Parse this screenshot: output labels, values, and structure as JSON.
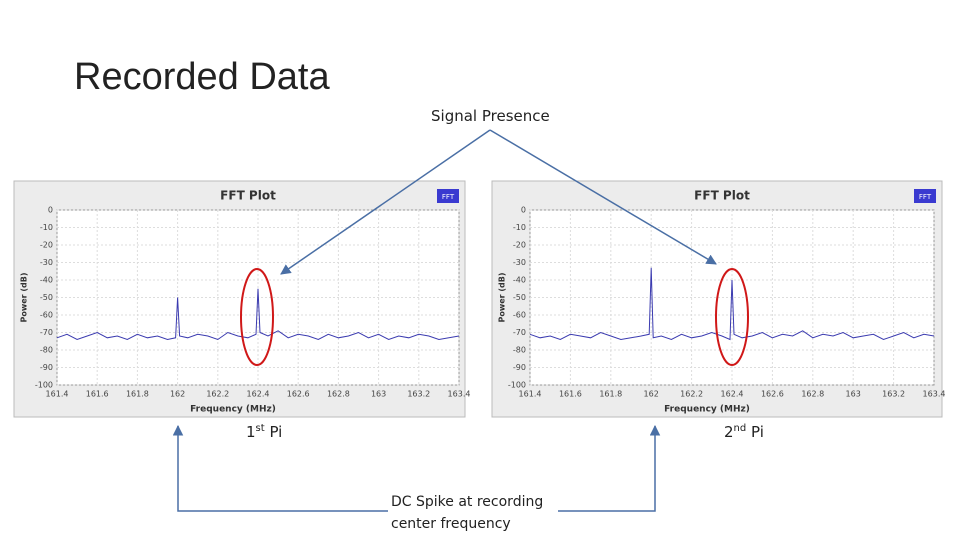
{
  "title": "Recorded Data",
  "annotations": {
    "signal": "Signal Presence",
    "pi1": {
      "number": "1",
      "sup": "st",
      "name": "Pi"
    },
    "pi2": {
      "number": "2",
      "sup": "nd",
      "name": "Pi"
    },
    "dc": [
      "DC Spike at recording",
      "center frequency"
    ]
  },
  "chart_data": [
    {
      "type": "line",
      "title": "FFT Plot",
      "badge": "FFT",
      "x_label": "Frequency (MHz)",
      "y_label": "Power (dB)",
      "grid": true,
      "xlim": [
        161.4,
        163.4
      ],
      "xticks": [
        161.4,
        161.6,
        161.8,
        162,
        162.2,
        162.4,
        162.6,
        162.8,
        163,
        163.2,
        163.4
      ],
      "ylim": [
        -100,
        0
      ],
      "yticks": [
        0,
        -10,
        -20,
        -30,
        -40,
        -50,
        -60,
        -70,
        -80,
        -90,
        -100
      ],
      "x": [
        161.4,
        161.45,
        161.5,
        161.55,
        161.6,
        161.65,
        161.7,
        161.75,
        161.8,
        161.85,
        161.9,
        161.95,
        161.99,
        162,
        162.01,
        162.05,
        162.1,
        162.15,
        162.2,
        162.25,
        162.3,
        162.35,
        162.39,
        162.4,
        162.41,
        162.45,
        162.5,
        162.55,
        162.6,
        162.65,
        162.7,
        162.75,
        162.8,
        162.85,
        162.9,
        162.95,
        163,
        163.05,
        163.1,
        163.15,
        163.2,
        163.25,
        163.3,
        163.35,
        163.4
      ],
      "series": [
        {
          "color": "#3b3bb0",
          "values": [
            -73,
            -71,
            -74,
            -72,
            -70,
            -73,
            -72,
            -74,
            -71,
            -73,
            -72,
            -74,
            -73,
            -50,
            -72,
            -73,
            -71,
            -72,
            -74,
            -70,
            -72,
            -73,
            -71,
            -45,
            -70,
            -72,
            -69,
            -73,
            -71,
            -72,
            -74,
            -71,
            -73,
            -72,
            -70,
            -73,
            -71,
            -74,
            -72,
            -73,
            -71,
            -72,
            -74,
            -73,
            -72
          ]
        }
      ]
    },
    {
      "type": "line",
      "title": "FFT Plot",
      "badge": "FFT",
      "x_label": "Frequency (MHz)",
      "y_label": "Power (dB)",
      "grid": true,
      "xlim": [
        161.4,
        163.4
      ],
      "xticks": [
        161.4,
        161.6,
        161.8,
        162,
        162.2,
        162.4,
        162.6,
        162.8,
        163,
        163.2,
        163.4
      ],
      "ylim": [
        -100,
        0
      ],
      "yticks": [
        0,
        -10,
        -20,
        -30,
        -40,
        -50,
        -60,
        -70,
        -80,
        -90,
        -100
      ],
      "x": [
        161.4,
        161.45,
        161.5,
        161.55,
        161.6,
        161.65,
        161.7,
        161.75,
        161.8,
        161.85,
        161.9,
        161.95,
        161.99,
        162,
        162.01,
        162.05,
        162.1,
        162.15,
        162.2,
        162.25,
        162.3,
        162.35,
        162.39,
        162.4,
        162.41,
        162.45,
        162.5,
        162.55,
        162.6,
        162.65,
        162.7,
        162.75,
        162.8,
        162.85,
        162.9,
        162.95,
        163,
        163.05,
        163.1,
        163.15,
        163.2,
        163.25,
        163.3,
        163.35,
        163.4
      ],
      "series": [
        {
          "color": "#3b3bb0",
          "values": [
            -71,
            -73,
            -72,
            -74,
            -71,
            -72,
            -73,
            -70,
            -72,
            -74,
            -73,
            -72,
            -71,
            -33,
            -73,
            -72,
            -74,
            -71,
            -73,
            -72,
            -70,
            -72,
            -74,
            -40,
            -71,
            -73,
            -72,
            -70,
            -73,
            -71,
            -72,
            -69,
            -73,
            -71,
            -72,
            -70,
            -73,
            -72,
            -71,
            -74,
            -72,
            -70,
            -73,
            -71,
            -72
          ]
        }
      ]
    }
  ]
}
